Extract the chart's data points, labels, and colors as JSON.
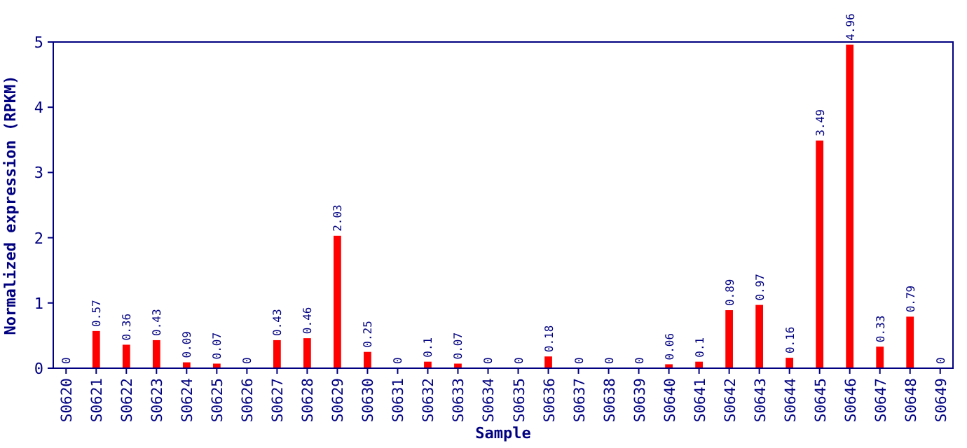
{
  "chart_data": {
    "type": "bar",
    "xlabel": "Sample",
    "ylabel": "Normalized expression (RPKM)",
    "categories": [
      "S0620",
      "S0621",
      "S0622",
      "S0623",
      "S0624",
      "S0625",
      "S0626",
      "S0627",
      "S0628",
      "S0629",
      "S0630",
      "S0631",
      "S0632",
      "S0633",
      "S0634",
      "S0635",
      "S0636",
      "S0637",
      "S0638",
      "S0639",
      "S0640",
      "S0641",
      "S0642",
      "S0643",
      "S0644",
      "S0645",
      "S0646",
      "S0647",
      "S0648",
      "S0649"
    ],
    "values": [
      0,
      0.57,
      0.36,
      0.43,
      0.09,
      0.07,
      0,
      0.43,
      0.46,
      2.03,
      0.25,
      0,
      0.1,
      0.07,
      0,
      0,
      0.18,
      0,
      0,
      0,
      0.06,
      0.1,
      0.89,
      0.97,
      0.16,
      3.49,
      4.96,
      0.33,
      0.79,
      0
    ],
    "data_labels": true,
    "color": "#ff0000",
    "ylim": [
      0,
      5
    ],
    "yticks": [
      0,
      1,
      2,
      3,
      4,
      5
    ],
    "grid": false
  }
}
